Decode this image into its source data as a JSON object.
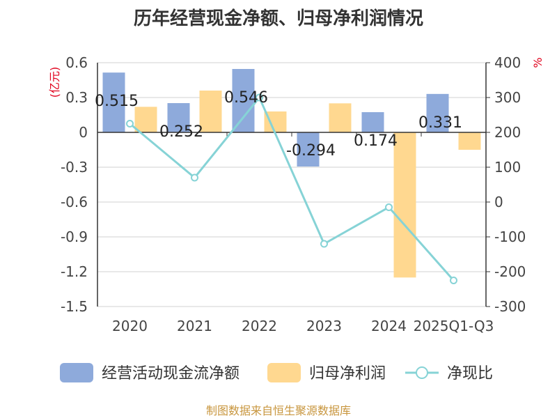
{
  "chart_data": {
    "type": "bar",
    "title": "历年经营现金净额、归母净利润情况",
    "categories": [
      "2020",
      "2021",
      "2022",
      "2023",
      "2024",
      "2025Q1-Q3"
    ],
    "left_unit": "(亿元)",
    "right_unit": "%",
    "left_ylim": [
      -1.5,
      0.6
    ],
    "left_ticks": [
      "0.6",
      "0.3",
      "0",
      "-0.3",
      "-0.6",
      "-0.9",
      "-1.2",
      "-1.5"
    ],
    "right_ylim": [
      -300,
      400
    ],
    "right_ticks": [
      "400",
      "300",
      "200",
      "100",
      "0",
      "-100",
      "-200",
      "-300"
    ],
    "grid": true,
    "legend_position": "bottom",
    "series": [
      {
        "name": "经营活动现金流净额",
        "kind": "bar",
        "axis": "left",
        "color": "#8eaadb",
        "values": [
          0.515,
          0.252,
          0.546,
          -0.294,
          0.174,
          0.331
        ],
        "labels": [
          "0.515",
          "0.252",
          "0.546",
          "-0.294",
          "0.174",
          "0.331"
        ]
      },
      {
        "name": "归母净利润",
        "kind": "bar",
        "axis": "left",
        "color": "#ffd890",
        "values": [
          0.22,
          0.36,
          0.18,
          0.25,
          -1.25,
          -0.15
        ]
      },
      {
        "name": "净现比",
        "kind": "line",
        "axis": "right",
        "color": "#86d3d6",
        "values": [
          225,
          70,
          300,
          -120,
          -15,
          -225
        ]
      }
    ]
  },
  "footer": {
    "source": "制图数据来自恒生聚源数据库"
  }
}
